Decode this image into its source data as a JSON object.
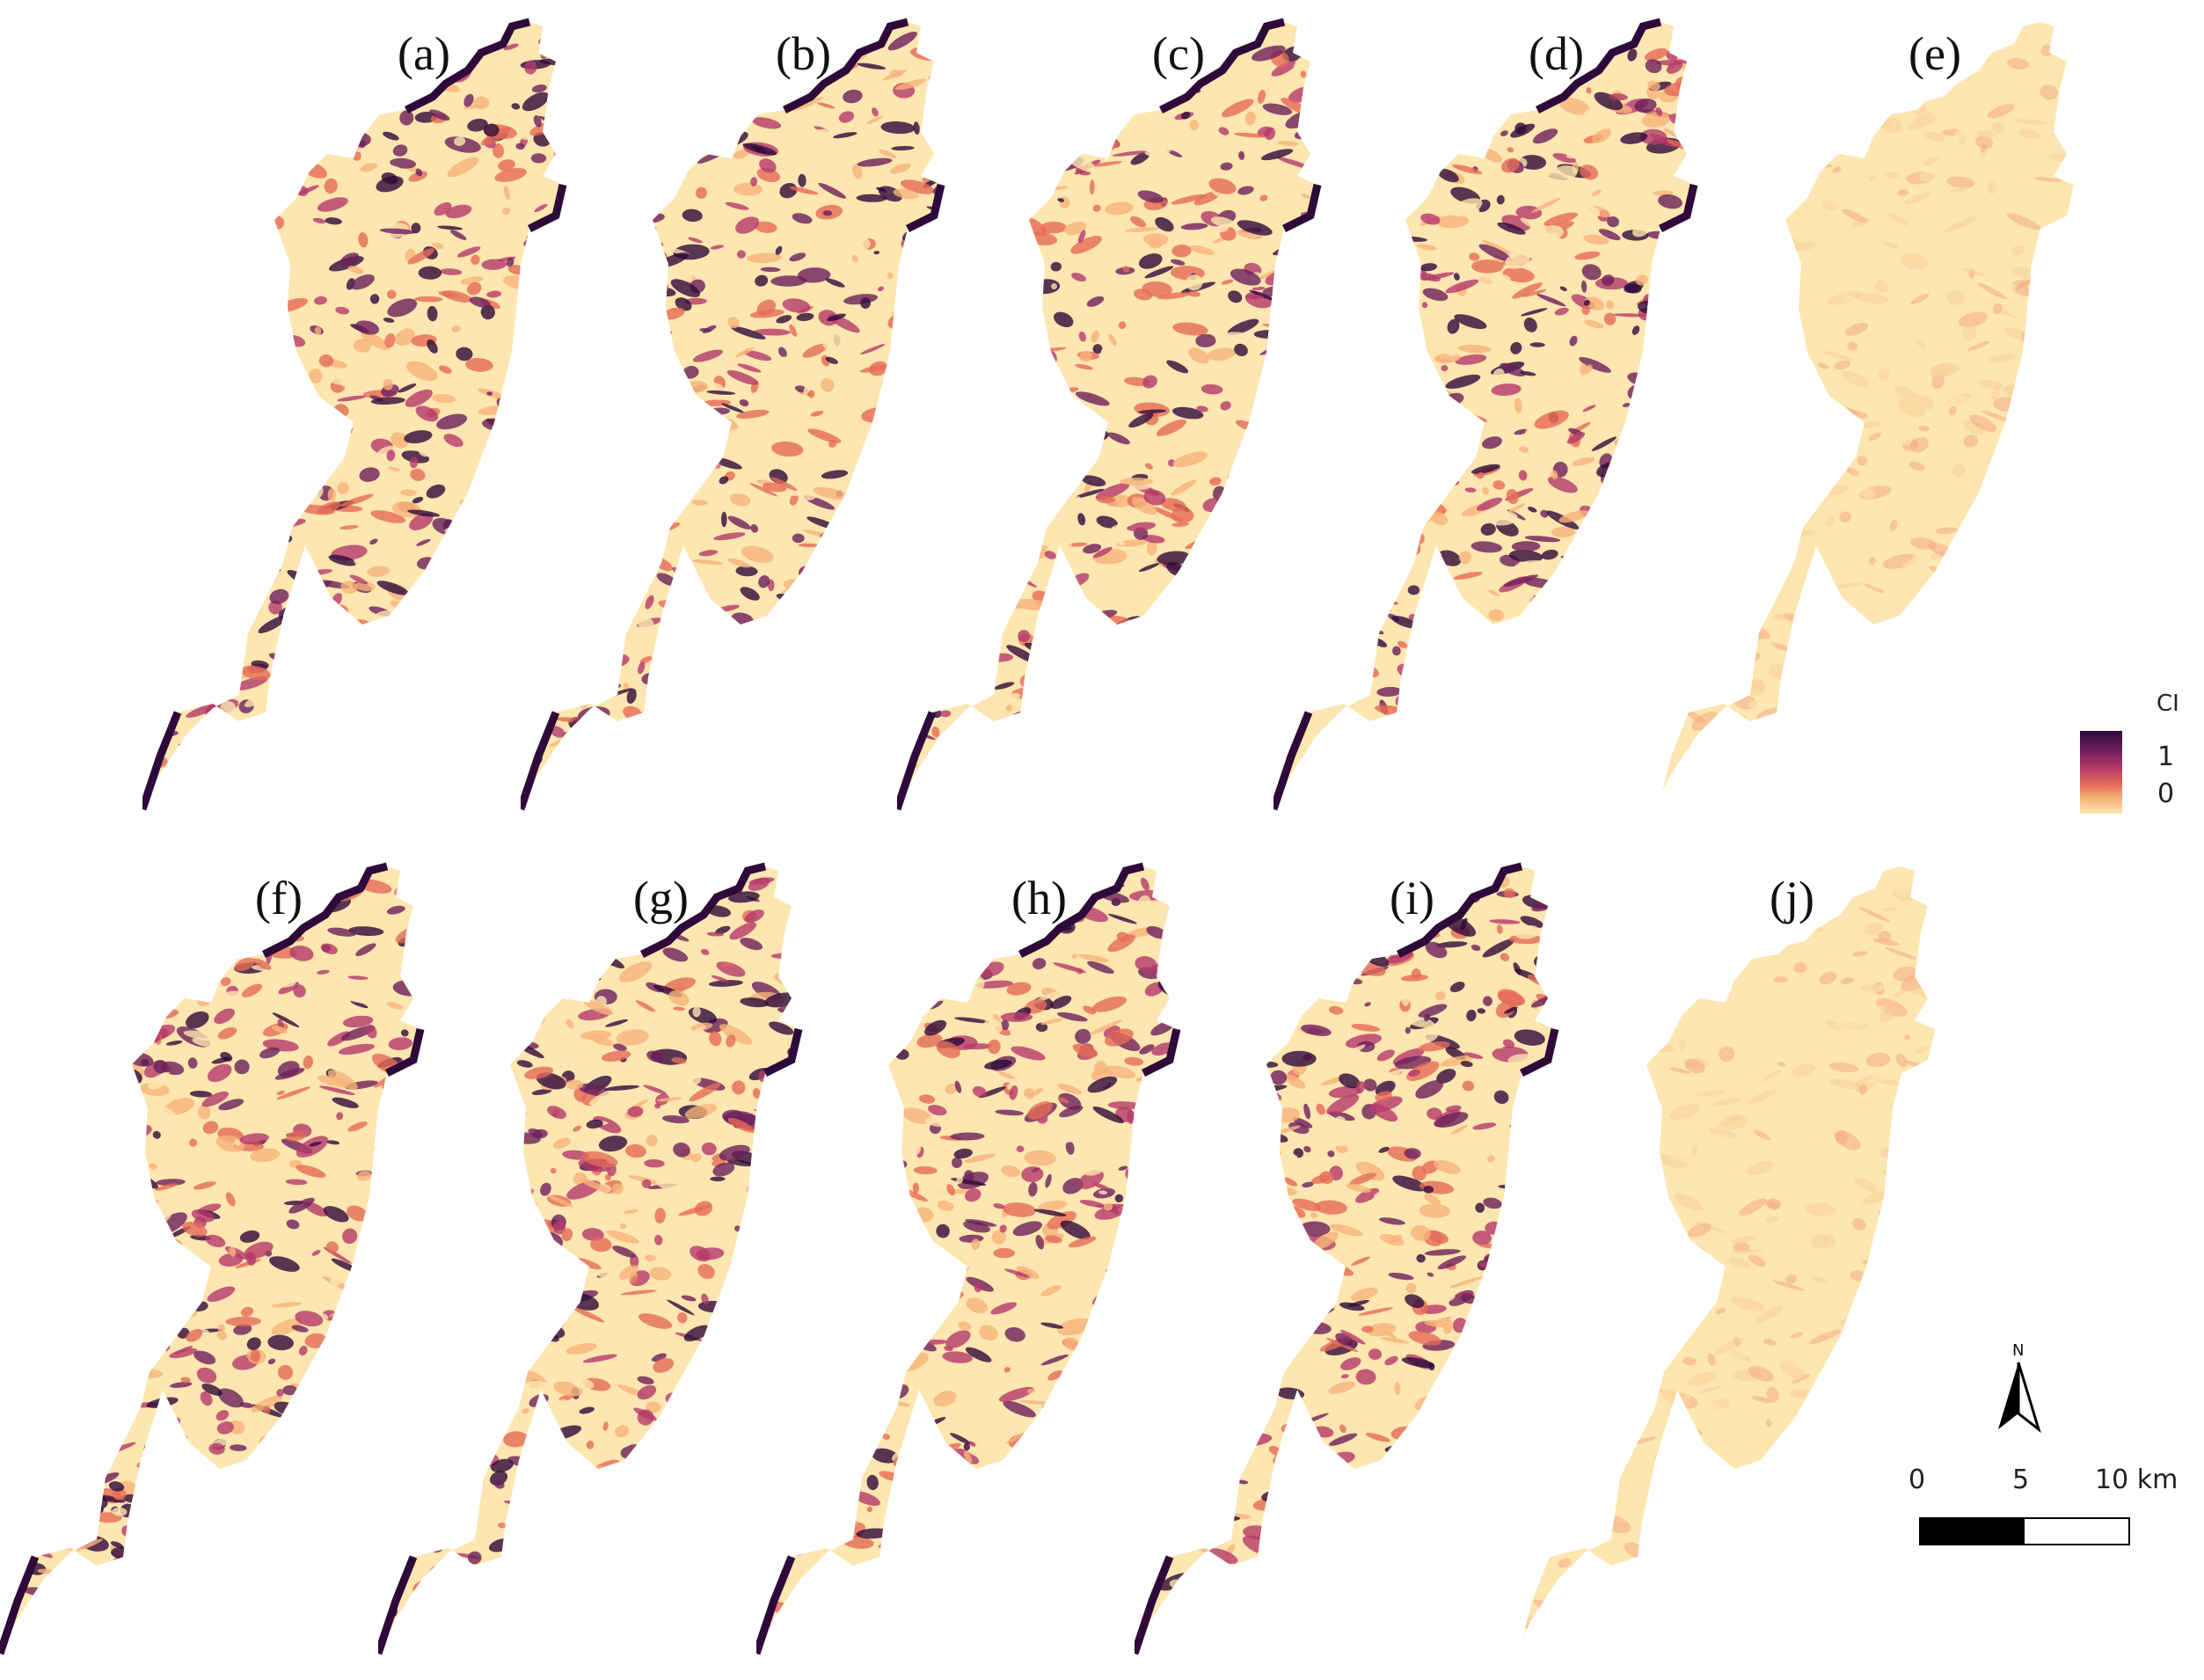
{
  "panels": [
    {
      "id": "a",
      "label": "(a)",
      "style": "dark"
    },
    {
      "id": "b",
      "label": "(b)",
      "style": "dark"
    },
    {
      "id": "c",
      "label": "(c)",
      "style": "dark"
    },
    {
      "id": "d",
      "label": "(d)",
      "style": "dark"
    },
    {
      "id": "e",
      "label": "(e)",
      "style": "light"
    },
    {
      "id": "f",
      "label": "(f)",
      "style": "dark"
    },
    {
      "id": "g",
      "label": "(g)",
      "style": "dark"
    },
    {
      "id": "h",
      "label": "(h)",
      "style": "dark"
    },
    {
      "id": "i",
      "label": "(i)",
      "style": "dark"
    },
    {
      "id": "j",
      "label": "(j)",
      "style": "light"
    }
  ],
  "legend": {
    "title": "CI",
    "max_label": "1",
    "min_label": "0",
    "colors": [
      "#2e0a3a",
      "#6b1f5b",
      "#b43a6a",
      "#e56b58",
      "#f6b47a",
      "#fde6b0"
    ]
  },
  "north_arrow": {
    "letter": "N",
    "icon": "north-arrow-icon"
  },
  "scale_bar": {
    "labels": [
      "0",
      "5",
      "10 km"
    ]
  },
  "palette": {
    "background": "#fde6b0",
    "light": [
      "#fde6b0",
      "#f8cf98",
      "#f4a982"
    ],
    "dark": [
      "#fde6b0",
      "#f6b47a",
      "#e56b58",
      "#b43a6a",
      "#6b1f5b",
      "#2e0a3a"
    ]
  }
}
